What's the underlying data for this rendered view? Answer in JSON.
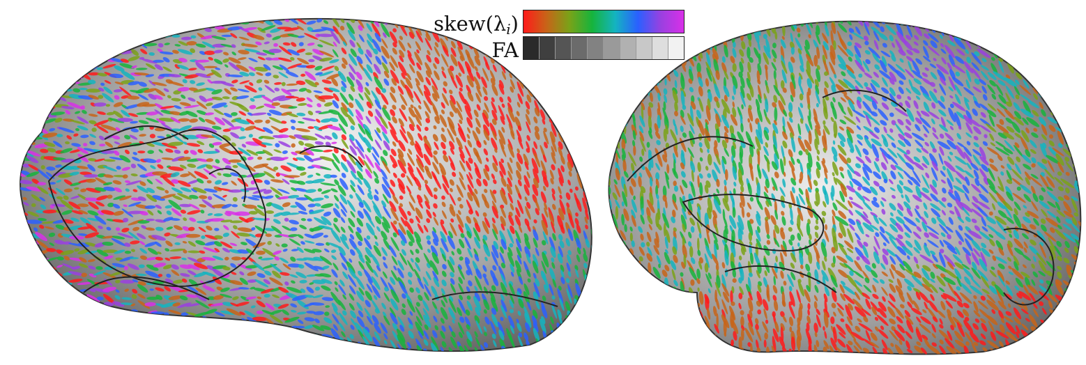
{
  "legend": {
    "skew_label": "skew(λ",
    "skew_subscript": "i",
    "skew_close": ")",
    "fa_label": "FA",
    "skew_colors": [
      "#ff1a1a",
      "#c86418",
      "#7aa218",
      "#16b43c",
      "#14b4c0",
      "#2a60ff",
      "#9a40e0",
      "#d830e8"
    ],
    "fa_cells": [
      "#2a2a2a",
      "#3f3f3f",
      "#555555",
      "#6b6b6b",
      "#828282",
      "#9a9a9a",
      "#b1b1b1",
      "#c8c8c8",
      "#dedede",
      "#f2f2f2"
    ]
  },
  "views": [
    {
      "name": "brain-lateral-left"
    },
    {
      "name": "brain-lateral-right"
    }
  ]
}
